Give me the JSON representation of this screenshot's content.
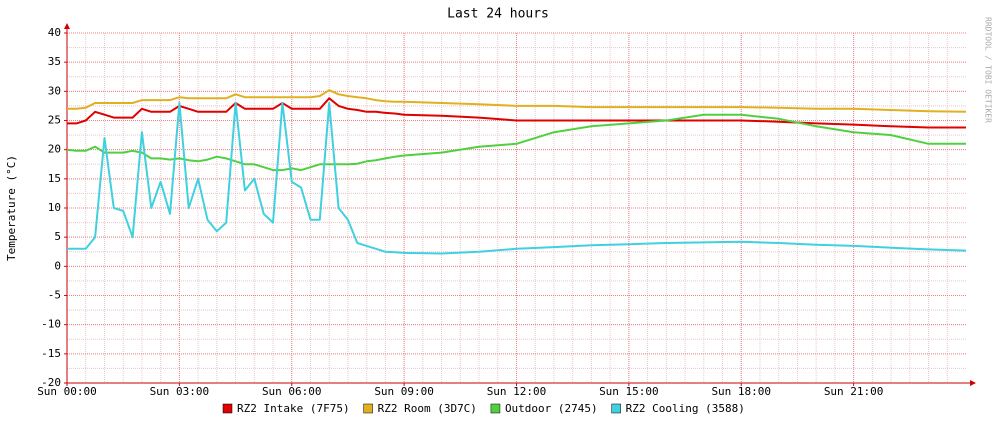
{
  "chart_data": {
    "type": "line",
    "title": "Last 24 hours",
    "y_label": "Temperature (°C)",
    "watermark": "RRDTOOL / TOBI OETIKER",
    "x": [
      0,
      0.25,
      0.5,
      0.75,
      1,
      1.25,
      1.5,
      1.75,
      2,
      2.25,
      2.5,
      2.75,
      3,
      3.25,
      3.5,
      3.75,
      4,
      4.25,
      4.5,
      4.75,
      5,
      5.25,
      5.5,
      5.75,
      6,
      6.25,
      6.5,
      6.75,
      7,
      7.25,
      7.5,
      7.75,
      8,
      8.25,
      8.5,
      8.75,
      9,
      10,
      11,
      12,
      13,
      14,
      15,
      16,
      17,
      18,
      19,
      20,
      21,
      22,
      23,
      24
    ],
    "xlim": [
      0,
      24
    ],
    "xticks": [
      {
        "value": 0,
        "label": "Sun 00:00"
      },
      {
        "value": 3,
        "label": "Sun 03:00"
      },
      {
        "value": 6,
        "label": "Sun 06:00"
      },
      {
        "value": 9,
        "label": "Sun 09:00"
      },
      {
        "value": 12,
        "label": "Sun 12:00"
      },
      {
        "value": 15,
        "label": "Sun 15:00"
      },
      {
        "value": 18,
        "label": "Sun 18:00"
      },
      {
        "value": 21,
        "label": "Sun 21:00"
      }
    ],
    "ylim": [
      -20,
      40
    ],
    "yticks": [
      -20,
      -15,
      -10,
      -5,
      0,
      5,
      10,
      15,
      20,
      25,
      30,
      35,
      40
    ],
    "grid": true,
    "legend": "bottom",
    "series": [
      {
        "name": "RZ2 Intake (7F75)",
        "color": "#e00000",
        "values": [
          24.5,
          24.5,
          25,
          26.5,
          26,
          25.5,
          25.5,
          25.5,
          27,
          26.5,
          26.5,
          26.5,
          27.5,
          27,
          26.5,
          26.5,
          26.5,
          26.5,
          28,
          27,
          27,
          27,
          27,
          28,
          27,
          27,
          27,
          27,
          28.8,
          27.5,
          27,
          26.8,
          26.5,
          26.5,
          26.3,
          26.2,
          26,
          25.8,
          25.5,
          25,
          25,
          25,
          25,
          25,
          25,
          25,
          24.8,
          24.5,
          24.3,
          24,
          23.8,
          23.8
        ]
      },
      {
        "name": "RZ2 Room (3D7C)",
        "color": "#e0b020",
        "values": [
          27,
          27,
          27.2,
          28,
          28,
          28,
          28,
          28,
          28.5,
          28.5,
          28.5,
          28.5,
          29,
          28.8,
          28.8,
          28.8,
          28.8,
          28.8,
          29.5,
          29,
          29,
          29,
          29,
          29,
          29,
          29,
          29,
          29.2,
          30.2,
          29.5,
          29.2,
          29,
          28.8,
          28.5,
          28.3,
          28.2,
          28.2,
          28,
          27.8,
          27.5,
          27.5,
          27.3,
          27.3,
          27.3,
          27.3,
          27.3,
          27.2,
          27,
          27,
          26.8,
          26.6,
          26.5
        ]
      },
      {
        "name": "Outdoor (2745)",
        "color": "#50d040",
        "values": [
          20,
          19.8,
          19.8,
          20.5,
          19.5,
          19.5,
          19.5,
          19.8,
          19.5,
          18.5,
          18.5,
          18.3,
          18.5,
          18.2,
          18,
          18.3,
          18.8,
          18.5,
          18,
          17.5,
          17.5,
          17,
          16.5,
          16.5,
          16.8,
          16.5,
          17,
          17.5,
          17.5,
          17.5,
          17.5,
          17.6,
          18,
          18.2,
          18.5,
          18.8,
          19,
          19.5,
          20.5,
          21,
          23,
          24,
          24.5,
          25,
          26,
          26,
          25.3,
          24,
          23,
          22.5,
          21,
          21
        ]
      },
      {
        "name": "RZ2 Cooling (3588)",
        "color": "#40d0e0",
        "values": [
          3,
          3,
          3,
          5,
          22,
          10,
          9.5,
          5,
          23,
          10,
          14.5,
          9,
          28,
          10,
          15,
          8,
          6,
          7.5,
          28,
          13,
          15,
          9,
          7.5,
          28,
          14.5,
          13.5,
          8,
          8,
          28,
          10,
          8,
          4,
          3.5,
          3,
          2.5,
          2.4,
          2.3,
          2.2,
          2.5,
          3,
          3.3,
          3.6,
          3.8,
          4,
          4.1,
          4.2,
          4,
          3.7,
          3.5,
          3.2,
          2.9,
          2.7
        ]
      }
    ]
  }
}
